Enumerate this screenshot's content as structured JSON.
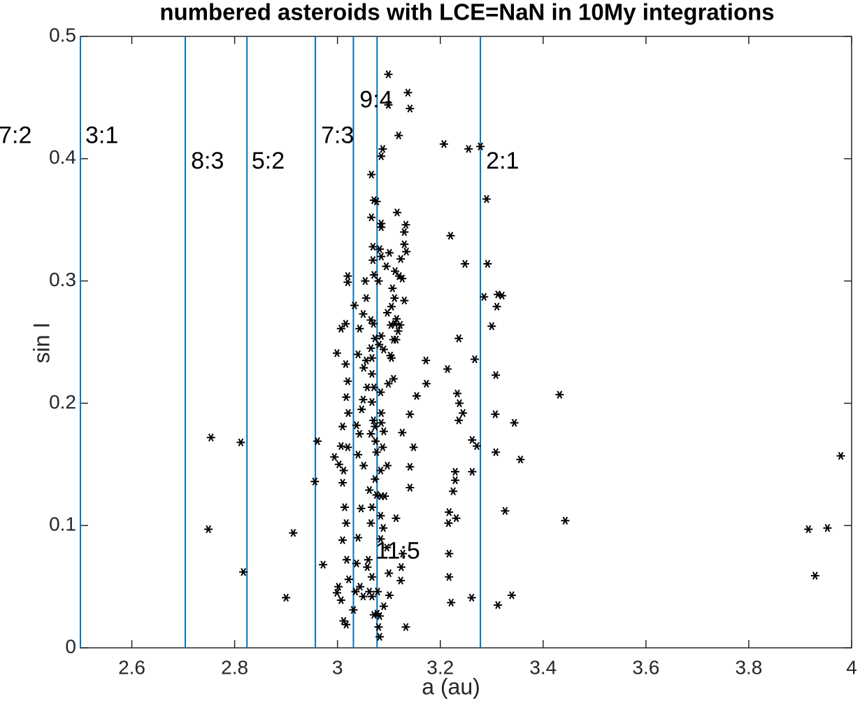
{
  "chart_data": {
    "type": "scatter",
    "title": "numbered asteroids with LCE=NaN in 10My integrations",
    "xlabel": "a (au)",
    "ylabel": "sin I",
    "xlim": [
      2.5,
      4
    ],
    "ylim": [
      0,
      0.5
    ],
    "xticks": [
      2.6,
      2.8,
      3,
      3.2,
      3.4,
      3.6,
      3.8,
      4
    ],
    "yticks": [
      0,
      0.1,
      0.2,
      0.3,
      0.4,
      0.5
    ],
    "color": "#000000",
    "marker": "asterisk",
    "vlines": [
      2.5,
      2.704,
      2.824,
      2.957,
      3.031,
      3.077,
      3.278
    ],
    "vline_color": "#0072bd",
    "annotations": [
      {
        "text": "7:2",
        "x": 2.341,
        "y": 0.418
      },
      {
        "text": "3:1",
        "x": 2.5095,
        "y": 0.418
      },
      {
        "text": "8:3",
        "x": 2.715,
        "y": 0.397
      },
      {
        "text": "5:2",
        "x": 2.833,
        "y": 0.397
      },
      {
        "text": "7:3",
        "x": 2.968,
        "y": 0.418
      },
      {
        "text": "9:4",
        "x": 3.043,
        "y": 0.447
      },
      {
        "text": "2:1",
        "x": 3.289,
        "y": 0.397
      },
      {
        "text": "11:5",
        "x": 3.074,
        "y": 0.078
      }
    ],
    "x": [
      2.754,
      2.749,
      2.812,
      2.817,
      2.9,
      2.914,
      2.961,
      2.956,
      2.972,
      3.099,
      3.137,
      3.099,
      3.119,
      3.141,
      3.085,
      3.088,
      3.207,
      3.255,
      3.278,
      3.29,
      3.066,
      3.076,
      3.085,
      3.085,
      3.116,
      3.133,
      3.13,
      3.123,
      3.13,
      3.134,
      3.111,
      3.085,
      3.095,
      3.22,
      3.248,
      3.292,
      3.312,
      3.32,
      3.285,
      3.31,
      3.3,
      3.236,
      3.267,
      3.172,
      3.173,
      3.214,
      3.308,
      3.307,
      3.344,
      3.432,
      3.356,
      3.233,
      3.237,
      3.244,
      3.236,
      3.262,
      3.271,
      3.308,
      3.154,
      3.141,
      3.126,
      3.148,
      3.141,
      3.141,
      3.229,
      3.229,
      3.225,
      3.262,
      3.217,
      3.216,
      3.231,
      3.326,
      3.443,
      3.217,
      3.217,
      3.221,
      3.261,
      3.312,
      3.339,
      3.916,
      3.953,
      3.929,
      3.979,
      3.114,
      3.127,
      3.124,
      3.123,
      3.133,
      2.999,
      2.994,
      3.007,
      3.003,
      3.012,
      3.02,
      3.01,
      3.014,
      3.017,
      3.01,
      3.018,
      3.022,
      3.007,
      3.012,
      3.017,
      3.002,
      2.999,
      3.01,
      3.021,
      3.017,
      3.02,
      3.016,
      3.007,
      3.016,
      3.02,
      3.02,
      3.033,
      3.04,
      3.043,
      3.05,
      3.054,
      3.056,
      3.065,
      3.073,
      3.065,
      3.056,
      3.051,
      3.058,
      3.047,
      3.037,
      3.043,
      3.05,
      3.065,
      3.074,
      3.04,
      3.051,
      3.062,
      3.067,
      3.046,
      3.04,
      3.037,
      3.044,
      3.05,
      3.031,
      3.035,
      3.062,
      3.067,
      3.058,
      3.085,
      3.084,
      3.085,
      3.088,
      3.084,
      3.085,
      3.084,
      3.084,
      3.078,
      3.082,
      3.08,
      3.082,
      3.077,
      3.09,
      3.1,
      3.101,
      3.096,
      3.089,
      3.092,
      3.097,
      3.09,
      3.099,
      3.105,
      3.109,
      3.104,
      3.097,
      3.09,
      3.109,
      3.103,
      3.085,
      3.081,
      3.08,
      3.082,
      3.071,
      3.066,
      3.069,
      3.069,
      3.071,
      3.07,
      3.067,
      3.067,
      3.071,
      3.067,
      3.07,
      3.073,
      3.076,
      3.073,
      3.076,
      3.065,
      3.06,
      3.067,
      3.071,
      3.105,
      3.112,
      3.114,
      3.118,
      3.115,
      3.122,
      3.126,
      3.13,
      3.12,
      3.107,
      3.112,
      3.101
    ],
    "y": [
      0.172,
      0.097,
      0.168,
      0.062,
      0.041,
      0.094,
      0.169,
      0.136,
      0.068,
      0.469,
      0.454,
      0.444,
      0.419,
      0.441,
      0.402,
      0.408,
      0.412,
      0.408,
      0.41,
      0.367,
      0.387,
      0.365,
      0.347,
      0.344,
      0.356,
      0.346,
      0.34,
      0.318,
      0.33,
      0.324,
      0.286,
      0.32,
      0.312,
      0.337,
      0.314,
      0.314,
      0.289,
      0.288,
      0.287,
      0.279,
      0.263,
      0.253,
      0.236,
      0.235,
      0.216,
      0.228,
      0.223,
      0.191,
      0.184,
      0.207,
      0.154,
      0.208,
      0.2,
      0.192,
      0.186,
      0.17,
      0.165,
      0.16,
      0.206,
      0.191,
      0.176,
      0.164,
      0.148,
      0.131,
      0.137,
      0.144,
      0.128,
      0.144,
      0.111,
      0.102,
      0.106,
      0.112,
      0.104,
      0.077,
      0.058,
      0.037,
      0.041,
      0.035,
      0.043,
      0.097,
      0.098,
      0.059,
      0.157,
      0.106,
      0.077,
      0.066,
      0.055,
      0.017,
      0.241,
      0.156,
      0.165,
      0.15,
      0.145,
      0.164,
      0.135,
      0.115,
      0.102,
      0.088,
      0.072,
      0.056,
      0.039,
      0.022,
      0.019,
      0.05,
      0.045,
      0.181,
      0.192,
      0.205,
      0.218,
      0.232,
      0.261,
      0.265,
      0.299,
      0.304,
      0.28,
      0.24,
      0.261,
      0.273,
      0.3,
      0.286,
      0.268,
      0.253,
      0.245,
      0.235,
      0.229,
      0.213,
      0.195,
      0.182,
      0.175,
      0.203,
      0.175,
      0.169,
      0.158,
      0.149,
      0.129,
      0.115,
      0.114,
      0.09,
      0.069,
      0.05,
      0.042,
      0.031,
      0.046,
      0.046,
      0.058,
      0.066,
      0.192,
      0.209,
      0.184,
      0.164,
      0.145,
      0.124,
      0.108,
      0.089,
      0.046,
      0.026,
      0.017,
      0.009,
      0.028,
      0.034,
      0.061,
      0.043,
      0.082,
      0.098,
      0.124,
      0.149,
      0.177,
      0.216,
      0.237,
      0.252,
      0.264,
      0.274,
      0.244,
      0.22,
      0.239,
      0.255,
      0.248,
      0.3,
      0.326,
      0.366,
      0.352,
      0.328,
      0.317,
      0.305,
      0.265,
      0.237,
      0.224,
      0.213,
      0.201,
      0.186,
      0.181,
      0.16,
      0.138,
      0.125,
      0.102,
      0.072,
      0.042,
      0.027,
      0.279,
      0.265,
      0.252,
      0.259,
      0.269,
      0.264,
      0.302,
      0.284,
      0.304,
      0.294,
      0.308,
      0.323
    ]
  }
}
